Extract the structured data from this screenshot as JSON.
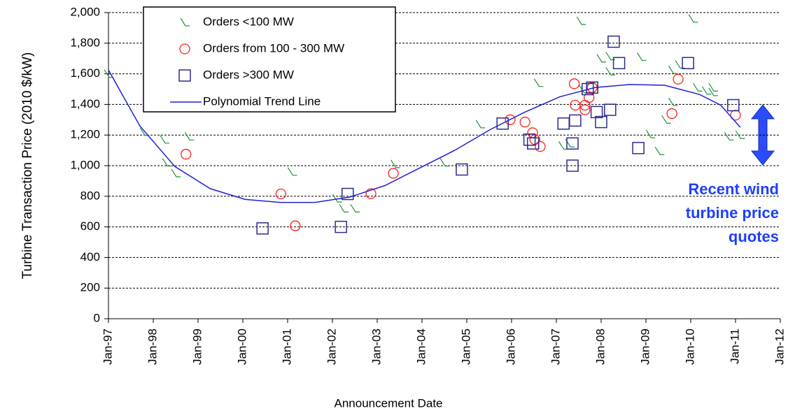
{
  "chart_data": {
    "type": "scatter",
    "xlabel": "Announcement Date",
    "ylabel": "Turbine Transaction Price (2010 $/kW)",
    "xlim": [
      1997,
      2012
    ],
    "ylim": [
      0,
      2000
    ],
    "xticks": [
      {
        "value": 1997,
        "label": "Jan-97"
      },
      {
        "value": 1998,
        "label": "Jan-98"
      },
      {
        "value": 1999,
        "label": "Jan-99"
      },
      {
        "value": 2000,
        "label": "Jan-00"
      },
      {
        "value": 2001,
        "label": "Jan-01"
      },
      {
        "value": 2002,
        "label": "Jan-02"
      },
      {
        "value": 2003,
        "label": "Jan-03"
      },
      {
        "value": 2004,
        "label": "Jan-04"
      },
      {
        "value": 2005,
        "label": "Jan-05"
      },
      {
        "value": 2006,
        "label": "Jan-06"
      },
      {
        "value": 2007,
        "label": "Jan-07"
      },
      {
        "value": 2008,
        "label": "Jan-08"
      },
      {
        "value": 2009,
        "label": "Jan-09"
      },
      {
        "value": 2010,
        "label": "Jan-10"
      },
      {
        "value": 2011,
        "label": "Jan-11"
      },
      {
        "value": 2012,
        "label": "Jan-12"
      }
    ],
    "yticks": [
      0,
      200,
      400,
      600,
      800,
      {
        "value": 1000,
        "label": "1,000"
      },
      {
        "value": 1200,
        "label": "1,200"
      },
      {
        "value": 1400,
        "label": "1,400"
      },
      {
        "value": 1600,
        "label": "1,600"
      },
      {
        "value": 1800,
        "label": "1,800"
      },
      {
        "value": 2000,
        "label": "2,000"
      }
    ],
    "grid": true,
    "annotation": [
      "Recent  wind",
      "turbine price",
      "quotes"
    ],
    "series": [
      {
        "name": "Orders <100 MW",
        "color": "#2e9a4e",
        "marker": "tick",
        "x": [
          1997.0,
          1997.8,
          1998.25,
          1998.8,
          1998.3,
          1998.5,
          2001.1,
          2002.1,
          2002.25,
          2002.5,
          2003.4,
          2004.5,
          2005.3,
          2006.6,
          2007.15,
          2007.3,
          2007.55,
          2007.6,
          2008.0,
          2008.2,
          2008.2,
          2008.9,
          2009.3,
          2009.45,
          2009.6,
          2009.6,
          2009.75,
          2009.1,
          2010.05,
          2010.15,
          2010.35,
          2010.5,
          2010.5,
          2010.85,
          2011.1
        ],
        "values": [
          1600,
          1220,
          1170,
          1190,
          1020,
          950,
          960,
          785,
          720,
          720,
          1010,
          1020,
          1270,
          1540,
          1130,
          1145,
          1945,
          1500,
          1700,
          1715,
          1615,
          1710,
          1095,
          1300,
          1415,
          1625,
          1660,
          1205,
          1960,
          1510,
          1490,
          1510,
          1480,
          1190,
          1200
        ]
      },
      {
        "name": "Orders from 100 - 300 MW",
        "color": "#ff2020",
        "marker": "circle",
        "x": [
          1998.73,
          2000.85,
          2001.17,
          2002.86,
          2003.36,
          2005.97,
          2006.3,
          2006.47,
          2006.52,
          2006.64,
          2007.4,
          2007.42,
          2007.64,
          2007.64,
          2007.73,
          2007.8,
          2009.58,
          2009.72,
          2011.0
        ],
        "values": [
          1075,
          815,
          607,
          817,
          950,
          1300,
          1285,
          1215,
          1170,
          1125,
          1535,
          1395,
          1365,
          1395,
          1445,
          1510,
          1340,
          1565,
          1330
        ]
      },
      {
        "name": "Orders >300 MW",
        "color": "#2b2b8c",
        "marker": "square",
        "x": [
          2000.44,
          2002.19,
          2002.34,
          2004.89,
          2005.8,
          2006.4,
          2006.48,
          2007.16,
          2007.36,
          2007.36,
          2007.42,
          2007.7,
          2007.8,
          2007.9,
          2008.0,
          2008.2,
          2008.28,
          2008.4,
          2008.83,
          2009.94,
          2010.95
        ],
        "values": [
          590,
          600,
          815,
          975,
          1275,
          1170,
          1145,
          1275,
          1145,
          1000,
          1295,
          1500,
          1510,
          1350,
          1285,
          1365,
          1810,
          1670,
          1115,
          1670,
          1395
        ]
      },
      {
        "name": "Polynomial Trend Line",
        "color": "#1f1fd6",
        "type": "line",
        "x": [
          1997.0,
          1997.7,
          1998.48,
          1999.27,
          2000.05,
          2000.83,
          2001.61,
          2002.39,
          2003.17,
          2003.95,
          2004.73,
          2005.52,
          2006.3,
          2007.08,
          2007.86,
          2008.64,
          2009.42,
          2010.2,
          2010.67,
          2011.11
        ],
        "values": [
          1625,
          1260,
          995,
          850,
          780,
          760,
          760,
          795,
          870,
          985,
          1100,
          1235,
          1350,
          1450,
          1510,
          1530,
          1525,
          1465,
          1395,
          1250
        ]
      }
    ]
  }
}
